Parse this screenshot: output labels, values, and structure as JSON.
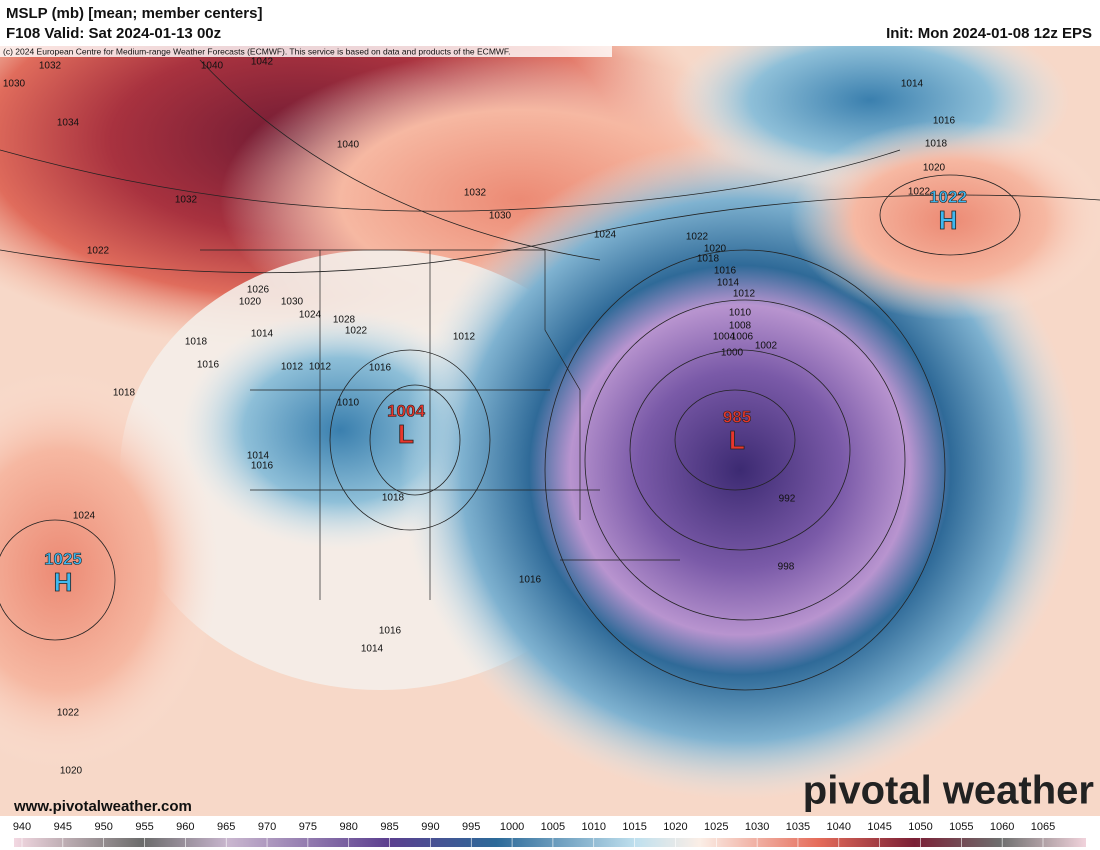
{
  "header": {
    "title": "MSLP (mb) [mean; member centers]",
    "valid": "F108 Valid: Sat 2024-01-13 00z",
    "init": "Init: Mon 2024-01-08 12z EPS",
    "credit": "(c) 2024 European Centre for Medium-range Weather Forecasts (ECMWF). This service is based on data and products of the ECMWF."
  },
  "centers": [
    {
      "letter": "L",
      "value": 985
    },
    {
      "letter": "L",
      "value": 1004
    },
    {
      "letter": "H",
      "value": 1025
    },
    {
      "letter": "H",
      "value": 1022
    }
  ],
  "isobars": [
    1032,
    1040,
    1042,
    1030,
    1034,
    1032,
    1040,
    1032,
    1030,
    1024,
    1022,
    1020,
    1018,
    1016,
    1014,
    1012,
    1010,
    1008,
    1006,
    1004,
    1002,
    1000,
    998,
    992,
    1022,
    1026,
    1020,
    1030,
    1024,
    1028,
    1022,
    1014,
    1018,
    1016,
    1012,
    1018,
    1016,
    1010,
    1014,
    1016,
    1018,
    1024,
    1022,
    1020,
    1016,
    1016,
    1014,
    1012,
    1014,
    1016,
    1018,
    1020,
    1022,
    1012
  ],
  "footer": {
    "website": "www.pivotalweather.com",
    "brand": "pivotal weather"
  },
  "colorbar": {
    "labels": [
      940,
      945,
      950,
      955,
      960,
      965,
      970,
      975,
      980,
      985,
      990,
      995,
      1000,
      1005,
      1010,
      1015,
      1020,
      1025,
      1030,
      1035,
      1040,
      1045,
      1050,
      1055,
      1060,
      1065
    ]
  }
}
